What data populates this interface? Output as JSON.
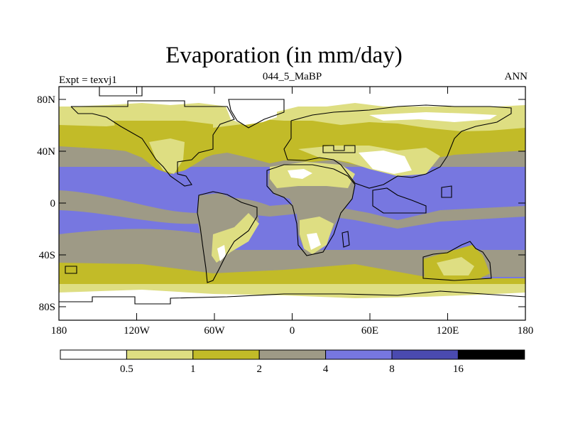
{
  "title": "Evaporation (in mm/day)",
  "left_label": "Expt = texvj1",
  "center_label": "044_5_MaBP",
  "right_label": "ANN",
  "lat_ticks": [
    "80N",
    "40N",
    "0",
    "40S",
    "80S"
  ],
  "lon_ticks": [
    "180",
    "120W",
    "60W",
    "0",
    "60E",
    "120E",
    "180"
  ],
  "colorbar": {
    "boundaries": [
      "0.5",
      "1",
      "2",
      "4",
      "8",
      "16"
    ],
    "colors": [
      "#ffffff",
      "#dede82",
      "#c2bb28",
      "#9e9a86",
      "#7777e0",
      "#4a4ab0",
      "#000000"
    ]
  },
  "colors": {
    "ice_white": "#ffffff",
    "pale_yellow": "#dede82",
    "olive": "#c2bb28",
    "gray": "#9e9a86",
    "blue": "#7777e0"
  }
}
